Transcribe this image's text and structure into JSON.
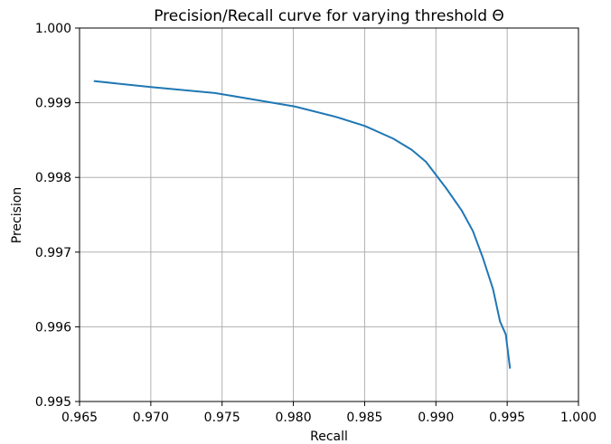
{
  "chart_data": {
    "type": "line",
    "title": "Precision/Recall curve for varying threshold Θ",
    "xlabel": "Recall",
    "ylabel": "Precision",
    "xlim": [
      0.965,
      1.0
    ],
    "ylim": [
      0.995,
      1.0
    ],
    "grid": true,
    "x_ticks": [
      "0.965",
      "0.970",
      "0.975",
      "0.980",
      "0.985",
      "0.990",
      "0.995",
      "1.000"
    ],
    "y_ticks": [
      "0.995",
      "0.996",
      "0.997",
      "0.998",
      "0.999",
      "1.000"
    ],
    "series": [
      {
        "color": "#1f77b4",
        "x": [
          0.966,
          0.97,
          0.9745,
          0.977,
          0.9801,
          0.983,
          0.985,
          0.987,
          0.9883,
          0.9893,
          0.9907,
          0.9918,
          0.9926,
          0.9933,
          0.994,
          0.9945,
          0.9949,
          0.9952
        ],
        "y": [
          0.99929,
          0.99921,
          0.99913,
          0.99905,
          0.99895,
          0.99881,
          0.99869,
          0.99852,
          0.99837,
          0.99821,
          0.99786,
          0.99756,
          0.99728,
          0.99692,
          0.99651,
          0.99607,
          0.9959,
          0.99544
        ]
      }
    ]
  }
}
